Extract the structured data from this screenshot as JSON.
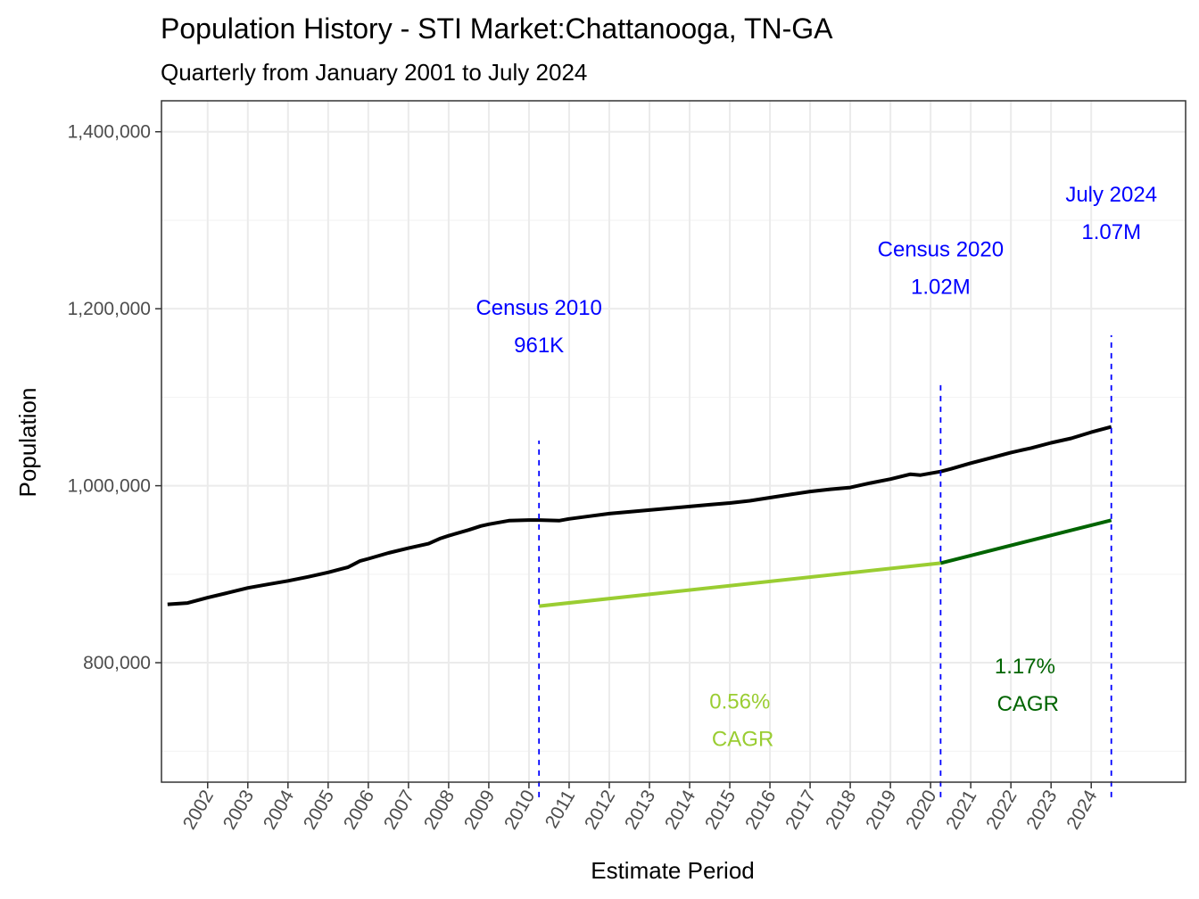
{
  "chart_data": {
    "type": "line",
    "title": "Population History - STI Market:Chattanooga, TN-GA",
    "subtitle": "Quarterly from January 2001 to July 2024",
    "xlabel": "Estimate Period",
    "ylabel": "Population",
    "x_tick_labels": [
      "2002",
      "2003",
      "2004",
      "2005",
      "2006",
      "2007",
      "2008",
      "2009",
      "2010",
      "2011",
      "2012",
      "2013",
      "2014",
      "2015",
      "2016",
      "2017",
      "2018",
      "2019",
      "2020",
      "2021",
      "2022",
      "2023",
      "2024"
    ],
    "y_tick_labels": [
      "800,000",
      "1,000,000",
      "1,200,000",
      "1,400,000"
    ],
    "y_ticks": [
      800000,
      1000000,
      1200000,
      1400000
    ],
    "ylim": [
      665000,
      1435000
    ],
    "xlim": [
      2000.85,
      2026.35
    ],
    "grid": true,
    "series": [
      {
        "name": "",
        "color": "#000000",
        "points": [
          [
            2001.0,
            866000
          ],
          [
            2001.5,
            867500
          ],
          [
            2002.0,
            873500
          ],
          [
            2002.5,
            879000
          ],
          [
            2003.0,
            884500
          ],
          [
            2003.5,
            888500
          ],
          [
            2004.0,
            892500
          ],
          [
            2004.5,
            897000
          ],
          [
            2005.0,
            902000
          ],
          [
            2005.5,
            908000
          ],
          [
            2005.8,
            915000
          ],
          [
            2006.0,
            917500
          ],
          [
            2006.5,
            924000
          ],
          [
            2007.0,
            929500
          ],
          [
            2007.5,
            934500
          ],
          [
            2007.8,
            940500
          ],
          [
            2008.0,
            943500
          ],
          [
            2008.5,
            950000
          ],
          [
            2008.8,
            954500
          ],
          [
            2009.0,
            956500
          ],
          [
            2009.5,
            960500
          ],
          [
            2010.0,
            961200
          ],
          [
            2010.25,
            961200
          ],
          [
            2010.75,
            960500
          ],
          [
            2011.0,
            962500
          ],
          [
            2011.5,
            965500
          ],
          [
            2012.0,
            968500
          ],
          [
            2012.5,
            970500
          ],
          [
            2013.0,
            972500
          ],
          [
            2013.5,
            974500
          ],
          [
            2014.0,
            976500
          ],
          [
            2014.5,
            978500
          ],
          [
            2015.0,
            980500
          ],
          [
            2015.5,
            983000
          ],
          [
            2016.0,
            986500
          ],
          [
            2016.5,
            990000
          ],
          [
            2017.0,
            993500
          ],
          [
            2017.5,
            996000
          ],
          [
            2018.0,
            998000
          ],
          [
            2018.5,
            1003000
          ],
          [
            2019.0,
            1007500
          ],
          [
            2019.5,
            1013000
          ],
          [
            2019.75,
            1012000
          ],
          [
            2020.0,
            1014000
          ],
          [
            2020.25,
            1016000
          ],
          [
            2020.5,
            1019000
          ],
          [
            2021.0,
            1025500
          ],
          [
            2021.5,
            1031500
          ],
          [
            2022.0,
            1037500
          ],
          [
            2022.5,
            1042500
          ],
          [
            2023.0,
            1048500
          ],
          [
            2023.5,
            1053500
          ],
          [
            2024.0,
            1060500
          ],
          [
            2024.5,
            1066500
          ]
        ]
      },
      {
        "name": "",
        "color": "#9acd32",
        "points": [
          [
            2010.25,
            864000
          ],
          [
            2020.25,
            912500
          ]
        ]
      },
      {
        "name": "",
        "color": "#006400",
        "points": [
          [
            2020.25,
            912500
          ],
          [
            2024.5,
            961000
          ]
        ]
      }
    ],
    "reference_lines": [
      {
        "x": 2010.25,
        "y_from": 648000,
        "y_to": 1051000,
        "color": "#0000ff",
        "dash": "dashed"
      },
      {
        "x": 2020.25,
        "y_from": 648000,
        "y_to": 1118000,
        "color": "#0000ff",
        "dash": "dashed"
      },
      {
        "x": 2024.5,
        "y_from": 648000,
        "y_to": 1170000,
        "color": "#0000ff",
        "dash": "dashed"
      }
    ],
    "annotations": [
      {
        "lines": [
          "Census 2010",
          "961K"
        ],
        "x": 2010.25,
        "y": 1180000,
        "color": "#0000ff"
      },
      {
        "lines": [
          "Census 2020",
          "1.02M"
        ],
        "x": 2020.25,
        "y": 1246000,
        "color": "#0000ff"
      },
      {
        "lines": [
          "July 2024",
          "1.07M"
        ],
        "x": 2024.5,
        "y": 1308000,
        "color": "#0000ff"
      },
      {
        "lines": [
          "0.56%",
          " CAGR"
        ],
        "x": 2015.25,
        "y": 735000,
        "color": "#9acd32"
      },
      {
        "lines": [
          "1.17%",
          " CAGR"
        ],
        "x": 2022.35,
        "y": 775000,
        "color": "#006400"
      }
    ]
  }
}
